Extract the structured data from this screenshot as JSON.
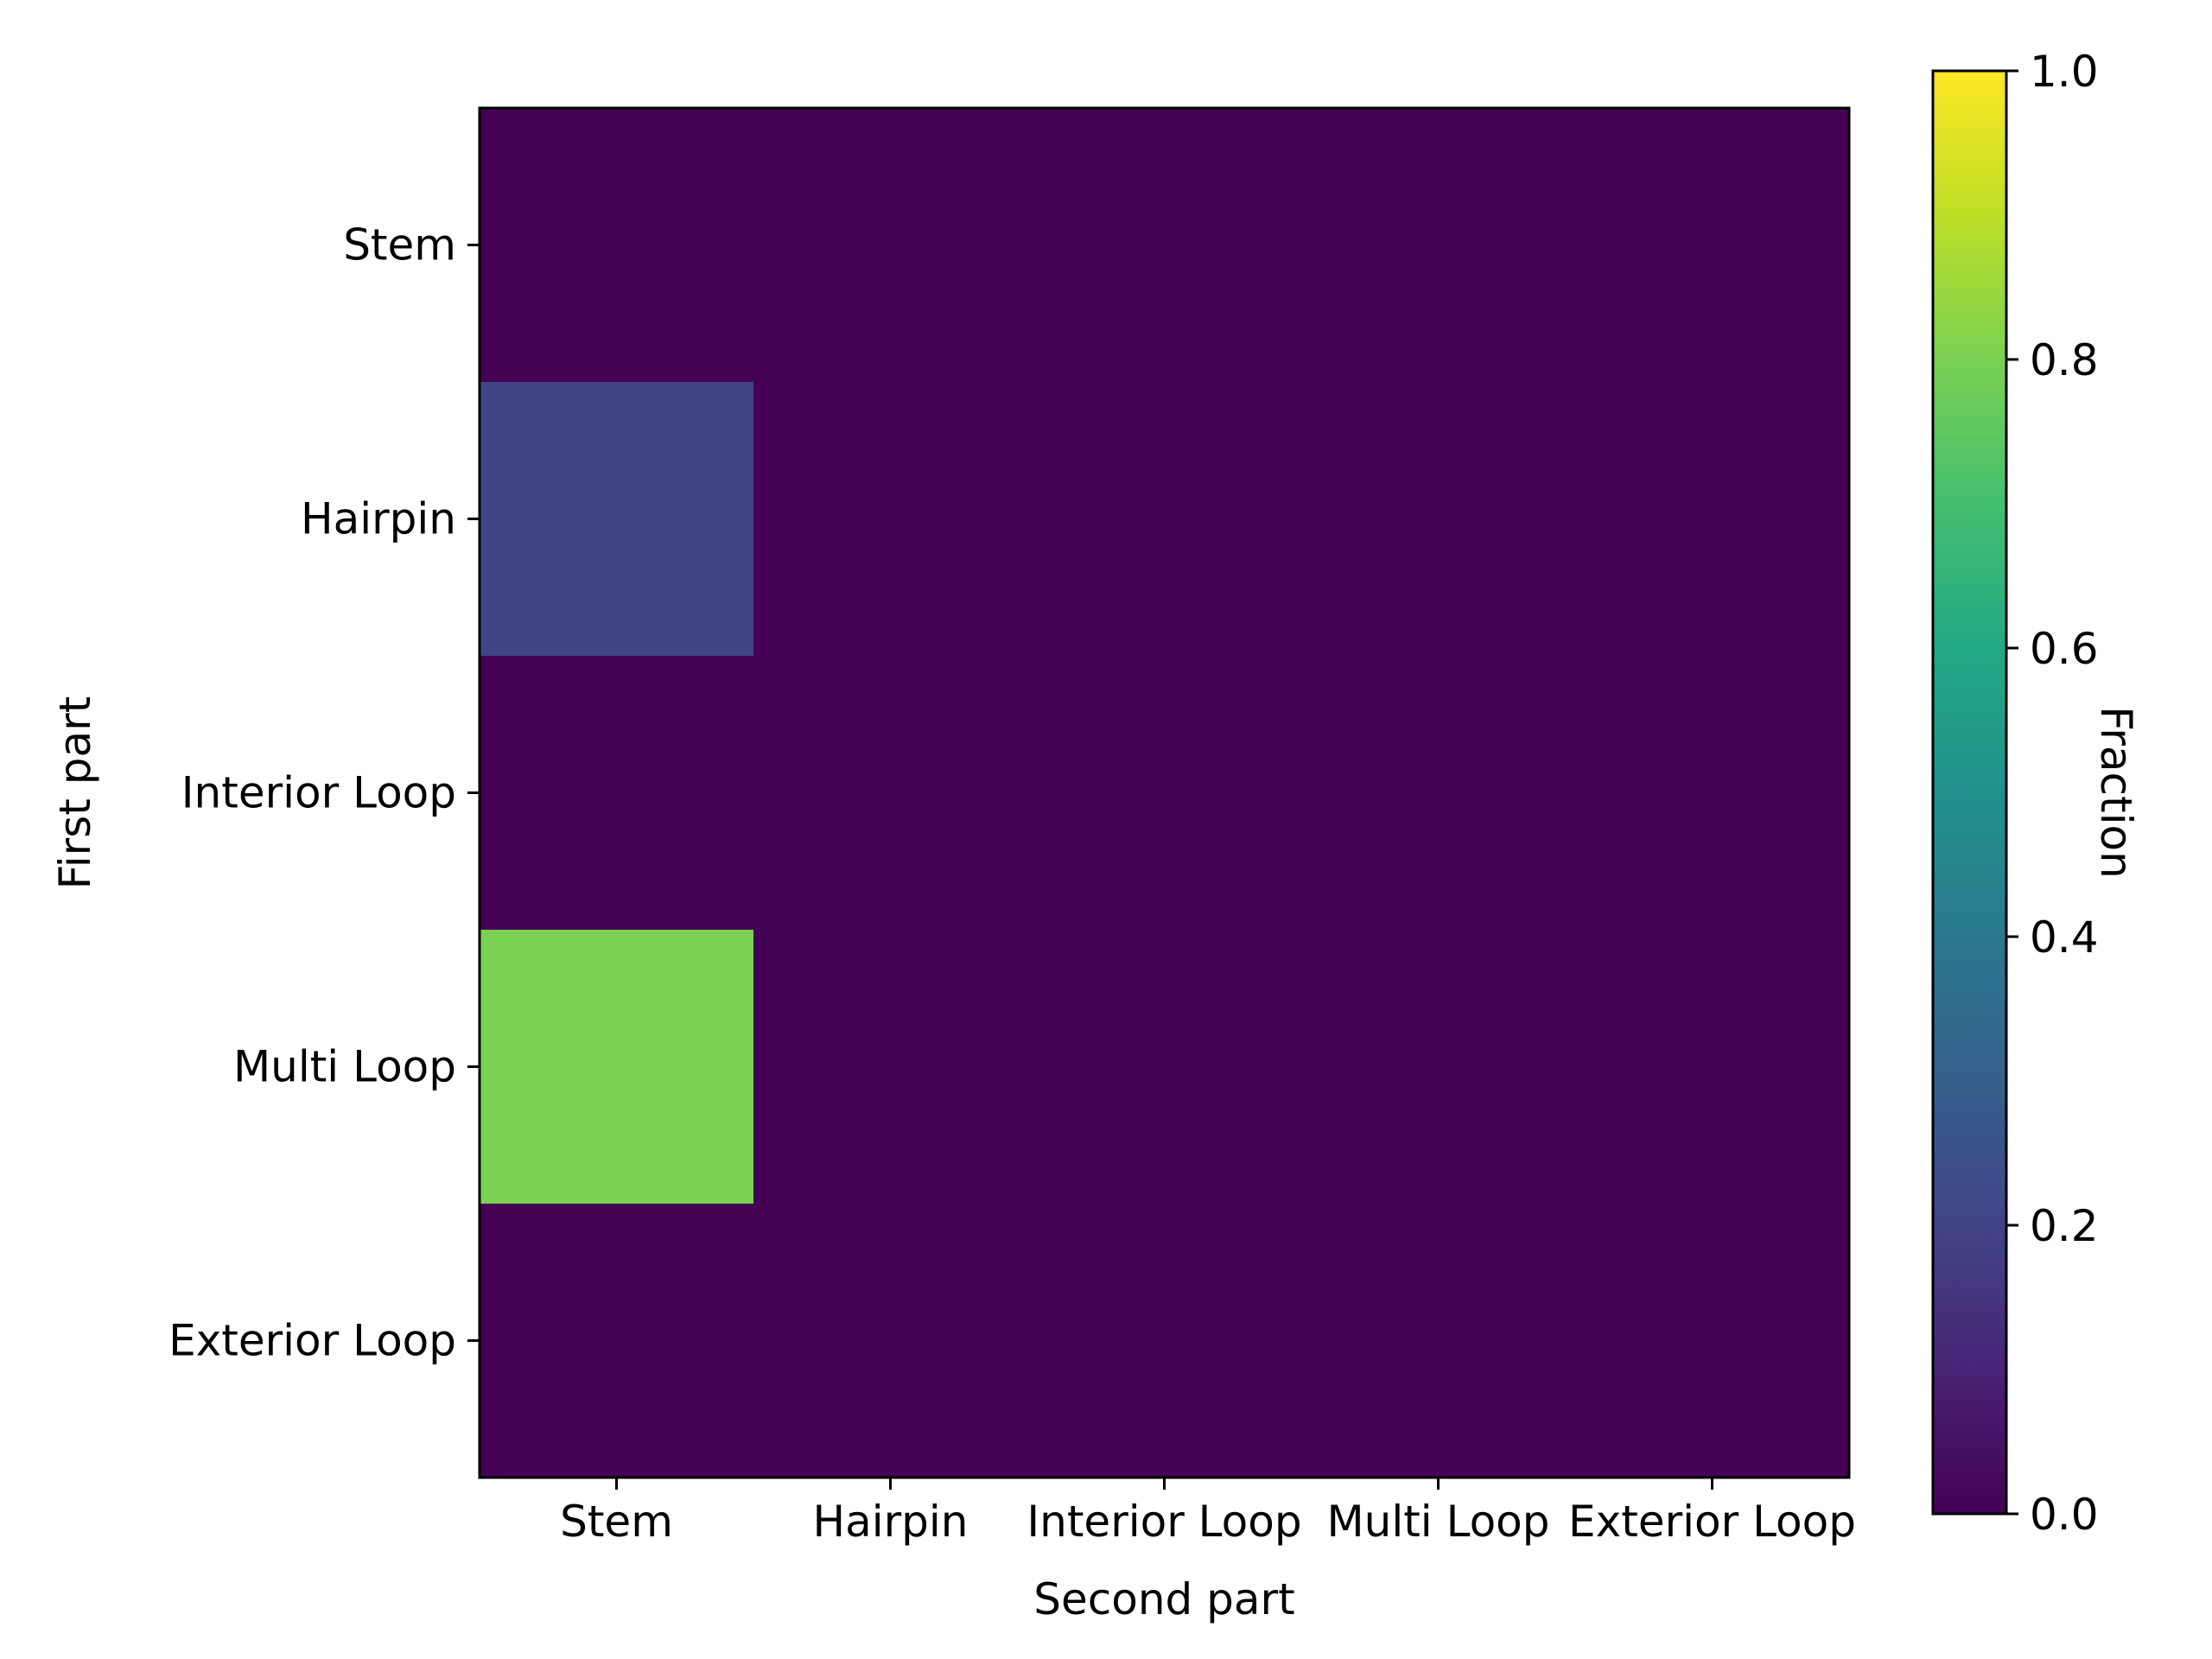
{
  "chart_data": {
    "type": "heatmap",
    "title": "",
    "xlabel": "Second part",
    "ylabel": "First part",
    "x_categories": [
      "Stem",
      "Hairpin",
      "Interior Loop",
      "Multi Loop",
      "Exterior Loop"
    ],
    "y_categories": [
      "Stem",
      "Hairpin",
      "Interior Loop",
      "Multi Loop",
      "Exterior Loop"
    ],
    "values": [
      [
        0.0,
        0.0,
        0.0,
        0.0,
        0.0
      ],
      [
        0.2,
        0.0,
        0.0,
        0.0,
        0.0
      ],
      [
        0.0,
        0.0,
        0.0,
        0.0,
        0.0
      ],
      [
        0.8,
        0.0,
        0.0,
        0.0,
        0.0
      ],
      [
        0.0,
        0.0,
        0.0,
        0.0,
        0.0
      ]
    ],
    "colormap": "viridis",
    "colorbar": {
      "label": "Fraction",
      "range": [
        0.0,
        1.0
      ],
      "ticks": [
        0.0,
        0.2,
        0.4,
        0.6,
        0.8,
        1.0
      ],
      "tick_labels": [
        "0.0",
        "0.2",
        "0.4",
        "0.6",
        "0.8",
        "1.0"
      ]
    },
    "grid": false,
    "legend": "none"
  }
}
